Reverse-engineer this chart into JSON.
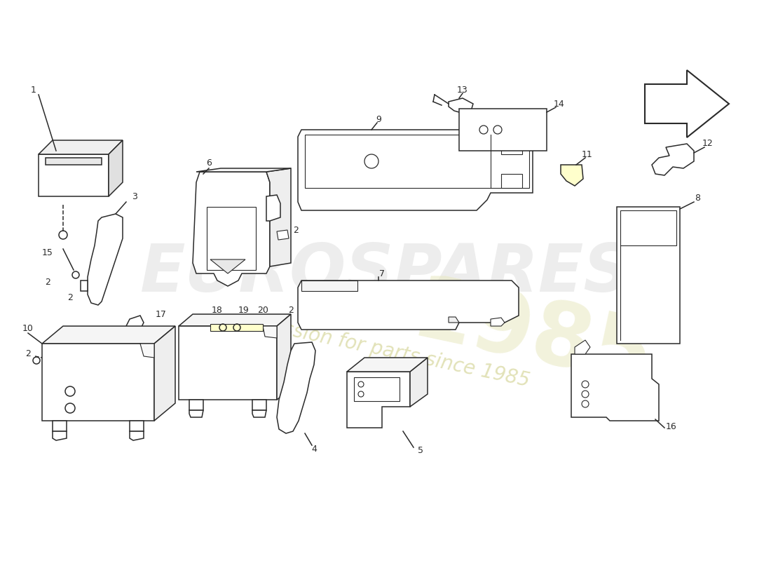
{
  "background_color": "#ffffff",
  "line_color": "#2a2a2a",
  "label_color": "#2a2a2a",
  "highlight_color": "#ffffcc",
  "lw": 1.1
}
